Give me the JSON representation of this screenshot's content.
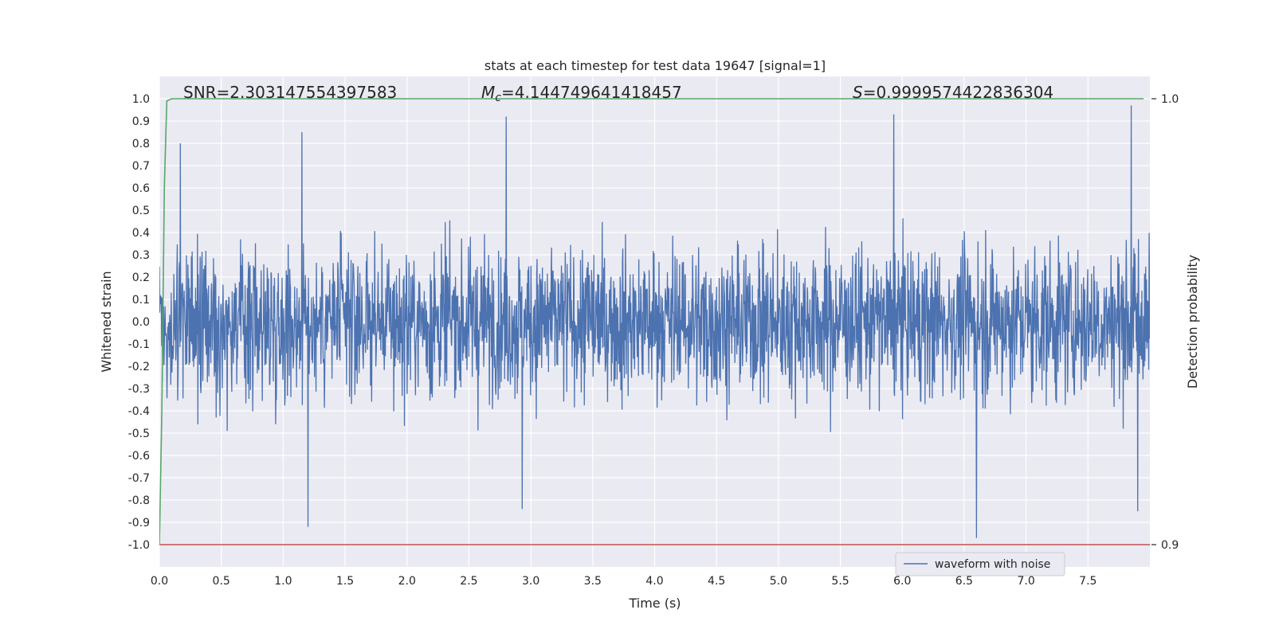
{
  "chart_data": {
    "type": "line",
    "title": "stats at each timestep for test data 19647 [signal=1]",
    "xlabel": "Time (s)",
    "ylabel": "Whitened strain",
    "y2label": "Detection probability",
    "xlim": [
      0.0,
      8.0
    ],
    "ylim": [
      -1.0,
      1.0
    ],
    "y2lim": [
      0.9,
      1.0
    ],
    "x_ticks": [
      "0.0",
      "0.5",
      "1.0",
      "1.5",
      "2.0",
      "2.5",
      "3.0",
      "3.5",
      "4.0",
      "4.5",
      "5.0",
      "5.5",
      "6.0",
      "6.5",
      "7.0",
      "7.5"
    ],
    "y_ticks": [
      "1.0",
      "0.9",
      "0.8",
      "0.7",
      "0.6",
      "0.5",
      "0.4",
      "0.3",
      "0.2",
      "0.1",
      "0.0",
      "-0.1",
      "-0.2",
      "-0.3",
      "-0.4",
      "-0.5",
      "-0.6",
      "-0.7",
      "-0.8",
      "-0.9",
      "-1.0"
    ],
    "y2_ticks": [
      "1.0",
      "0.9"
    ],
    "grid": true,
    "legend_position": "lower-right",
    "annotations": {
      "snr": "SNR=2.303147554397583",
      "mc_symbol": "M",
      "mc_sub": "c",
      "mc_value": "=4.144749641418457",
      "s_symbol": "S",
      "s_value": "=0.9999574422836304"
    },
    "series": [
      {
        "name": "waveform with noise",
        "color": "#4c72b0",
        "axis": "left",
        "sample_count": 8192,
        "typical_amplitude": 0.3,
        "max": 0.97,
        "min": -0.97,
        "notable_peaks": [
          [
            0.17,
            0.8
          ],
          [
            1.15,
            0.85
          ],
          [
            2.8,
            0.92
          ],
          [
            5.93,
            0.93
          ],
          [
            7.85,
            0.97
          ],
          [
            1.2,
            -0.92
          ],
          [
            2.93,
            -0.84
          ],
          [
            6.6,
            -0.97
          ],
          [
            7.9,
            -0.85
          ]
        ]
      },
      {
        "color": "#55a868",
        "axis": "right",
        "x": [
          0.0,
          0.02,
          0.04,
          0.06,
          0.1,
          7.95
        ],
        "values": [
          0.9,
          0.93,
          0.98,
          0.9995,
          1.0,
          1.0
        ]
      },
      {
        "color": "#c44e52",
        "axis": "right",
        "x": [
          0.0,
          8.0
        ],
        "values": [
          0.9,
          0.9
        ]
      }
    ]
  }
}
